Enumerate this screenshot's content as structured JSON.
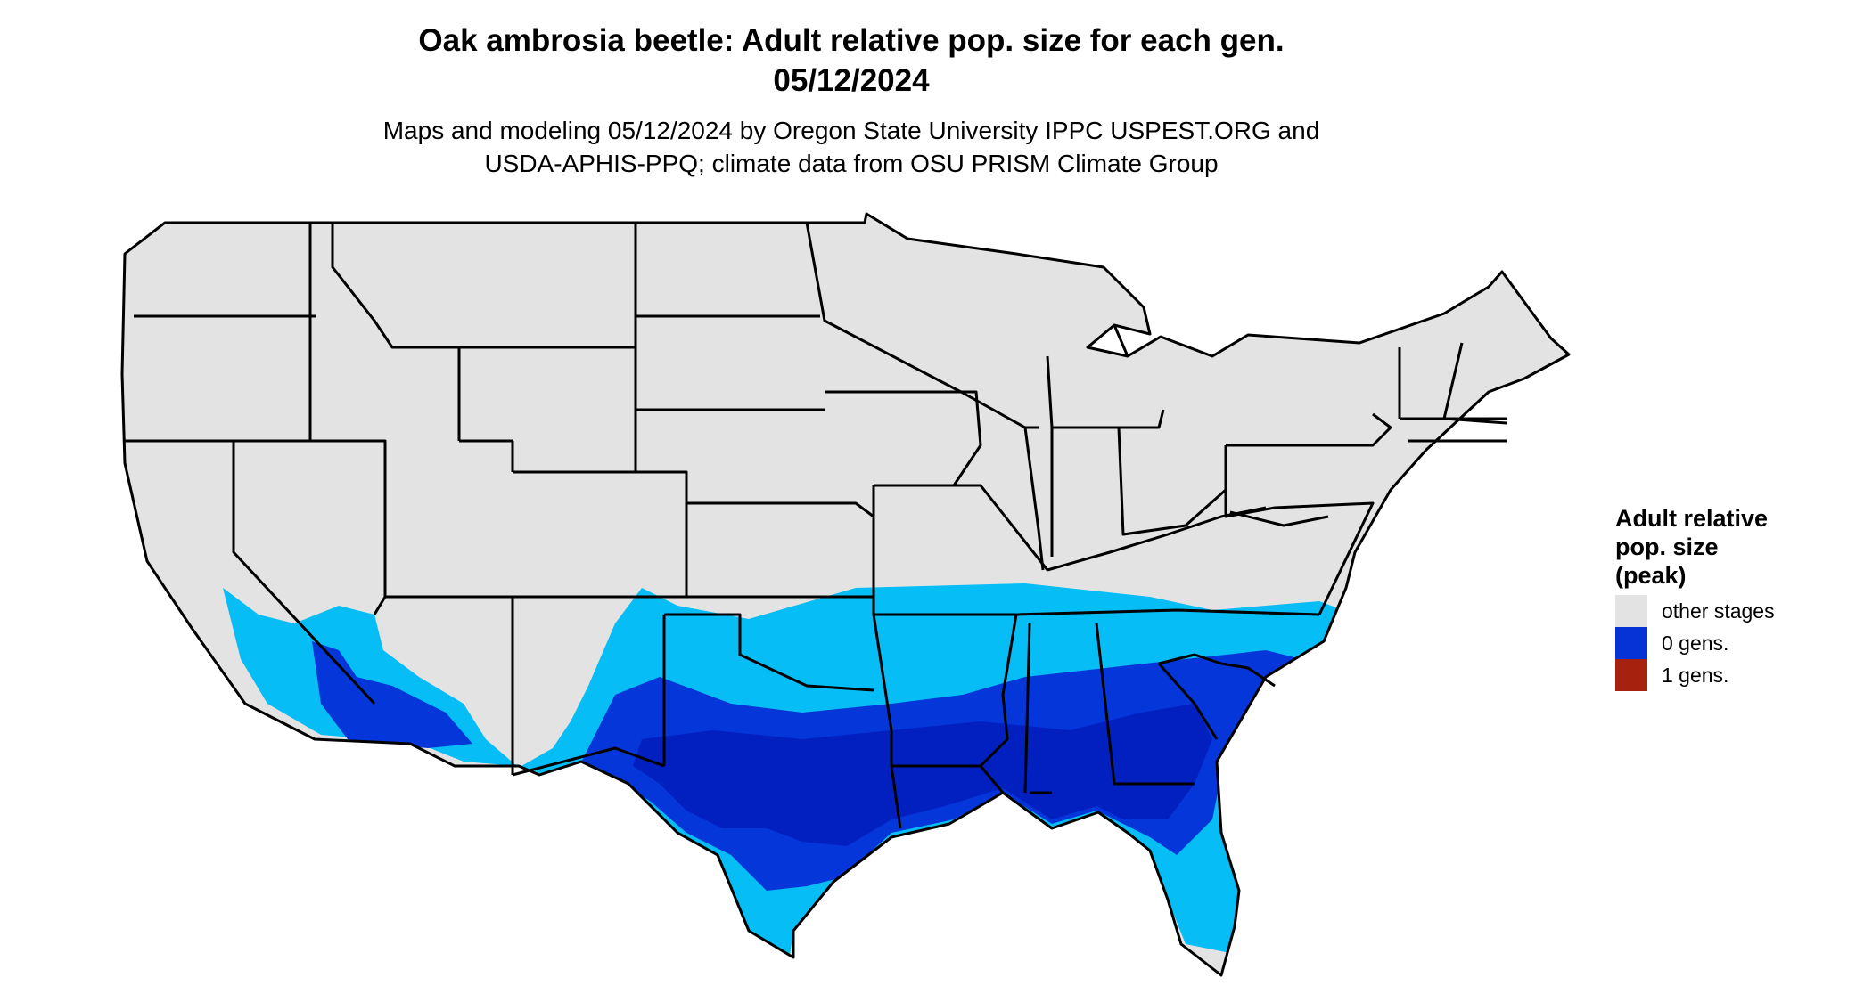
{
  "title_line1": "Oak ambrosia beetle: Adult relative pop. size for each gen.",
  "title_line2": "05/12/2024",
  "subtitle_line1": "Maps and modeling 05/12/2024 by Oregon State University IPPC USPEST.ORG and",
  "subtitle_line2": "USDA-APHIS-PPQ; climate data from OSU PRISM Climate Group",
  "legend": {
    "title_line1": "Adult relative",
    "title_line2": "pop. size",
    "title_line3": "(peak)",
    "items": [
      {
        "label": "other stages",
        "color": "#e3e3e3"
      },
      {
        "label": "0 gens.",
        "color": "#0533d6"
      },
      {
        "label": "1 gens.",
        "color": "#a6210e"
      }
    ]
  },
  "colors": {
    "land": "#e3e3e3",
    "borders": "#000000",
    "pop_light": "#06bdf5",
    "pop_mid": "#0436da",
    "pop_dark": "#021fc0"
  }
}
